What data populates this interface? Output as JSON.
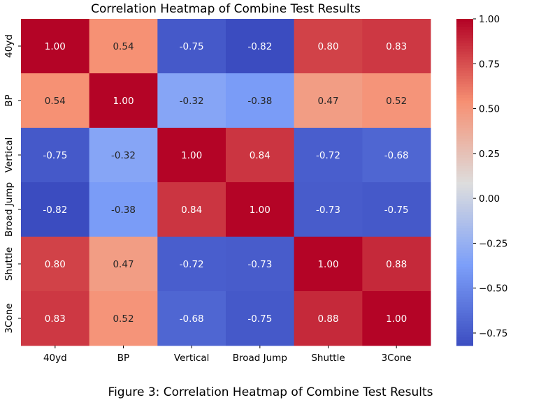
{
  "chart_data": {
    "type": "heatmap",
    "title": "Correlation Heatmap of Combine Test Results",
    "rows": [
      "40yd",
      "BP",
      "Vertical",
      "Broad Jump",
      "Shuttle",
      "3Cone"
    ],
    "columns": [
      "40yd",
      "BP",
      "Vertical",
      "Broad Jump",
      "Shuttle",
      "3Cone"
    ],
    "values": [
      [
        1.0,
        0.54,
        -0.75,
        -0.82,
        0.8,
        0.83
      ],
      [
        0.54,
        1.0,
        -0.32,
        -0.38,
        0.47,
        0.52
      ],
      [
        -0.75,
        -0.32,
        1.0,
        0.84,
        -0.72,
        -0.68
      ],
      [
        -0.82,
        -0.38,
        0.84,
        1.0,
        -0.73,
        -0.75
      ],
      [
        0.8,
        0.47,
        -0.72,
        -0.73,
        1.0,
        0.88
      ],
      [
        0.83,
        0.52,
        -0.68,
        -0.75,
        0.88,
        1.0
      ]
    ],
    "annotations": true,
    "value_format": "0.00",
    "colormap": "coolwarm",
    "vmin": -0.82,
    "vmax": 1.0,
    "colorbar": {
      "ticks": [
        1.0,
        0.75,
        0.5,
        0.25,
        0.0,
        -0.25,
        -0.5,
        -0.75
      ],
      "tick_labels": [
        "1.00",
        "0.75",
        "0.50",
        "0.25",
        "0.00",
        "−0.25",
        "−0.50",
        "−0.75"
      ],
      "placement": "right"
    },
    "grid": false
  },
  "caption": "Figure 3: Correlation Heatmap of Combine Test Results"
}
